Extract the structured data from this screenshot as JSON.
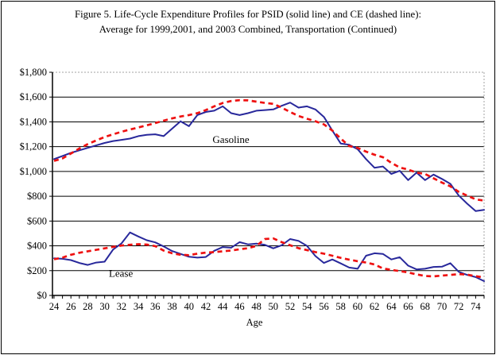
{
  "figure": {
    "title_line1": "Figure 5. Life-Cycle Expenditure Profiles for PSID (solid line) and CE (dashed line):",
    "title_line2": "Average for 1999,2001, and 2003 Combined, Transportation (Continued)"
  },
  "chart_data": {
    "type": "line",
    "title": "Figure 5. Life-Cycle Expenditure Profiles for PSID (solid line) and CE (dashed line): Average for 1999,2001, and 2003 Combined, Transportation (Continued)",
    "xlabel": "Age",
    "ylabel": "",
    "xlim": [
      24,
      75
    ],
    "ylim": [
      0,
      1800
    ],
    "grid": "horizontal",
    "legend_position": "none",
    "x": [
      24,
      25,
      26,
      27,
      28,
      29,
      30,
      31,
      32,
      33,
      34,
      35,
      36,
      37,
      38,
      39,
      40,
      41,
      42,
      43,
      44,
      45,
      46,
      47,
      48,
      49,
      50,
      51,
      52,
      53,
      54,
      55,
      56,
      57,
      58,
      59,
      60,
      61,
      62,
      63,
      64,
      65,
      66,
      67,
      68,
      69,
      70,
      71,
      72,
      73,
      74,
      75
    ],
    "x_tick_labels": [
      24,
      26,
      28,
      30,
      32,
      34,
      36,
      38,
      40,
      42,
      44,
      46,
      48,
      50,
      52,
      54,
      56,
      58,
      60,
      62,
      64,
      66,
      68,
      70,
      72,
      74
    ],
    "y_ticks": [
      0,
      200,
      400,
      600,
      800,
      1000,
      1200,
      1400,
      1600,
      1800
    ],
    "y_tick_labels": [
      "$0",
      "$200",
      "$400",
      "$600",
      "$800",
      "$1,000",
      "$1,200",
      "$1,400",
      "$1,600",
      "$1,800"
    ],
    "annotations": [
      {
        "text": "Gasoline",
        "age": 42.8,
        "value": 1230
      },
      {
        "text": "Lease",
        "age": 30.5,
        "value": 150
      }
    ],
    "colors": {
      "psid_solid": "#28289b",
      "ce_dashed": "#ee1111"
    },
    "series": [
      {
        "id": "gasoline-psid",
        "name": "Gasoline PSID (solid)",
        "group": "Gasoline",
        "style": "solid",
        "color": "#28289b",
        "values": [
          1100,
          1125,
          1150,
          1170,
          1190,
          1210,
          1230,
          1245,
          1255,
          1265,
          1285,
          1295,
          1300,
          1285,
          1345,
          1405,
          1365,
          1455,
          1480,
          1490,
          1525,
          1470,
          1455,
          1470,
          1490,
          1495,
          1500,
          1530,
          1555,
          1515,
          1525,
          1500,
          1440,
          1330,
          1225,
          1215,
          1180,
          1100,
          1030,
          1040,
          980,
          1005,
          930,
          990,
          930,
          975,
          940,
          900,
          805,
          740,
          680,
          690
        ]
      },
      {
        "id": "gasoline-ce",
        "name": "Gasoline CE (dashed)",
        "group": "Gasoline",
        "style": "dashed",
        "color": "#ee1111",
        "values": [
          1085,
          1105,
          1145,
          1185,
          1220,
          1250,
          1278,
          1300,
          1320,
          1338,
          1355,
          1372,
          1390,
          1410,
          1428,
          1443,
          1455,
          1470,
          1495,
          1525,
          1552,
          1568,
          1575,
          1573,
          1563,
          1553,
          1545,
          1515,
          1480,
          1448,
          1425,
          1405,
          1380,
          1330,
          1265,
          1205,
          1190,
          1160,
          1135,
          1115,
          1070,
          1032,
          1015,
          990,
          980,
          945,
          910,
          880,
          835,
          805,
          775,
          765
        ]
      },
      {
        "id": "lease-psid",
        "name": "Lease PSID (solid)",
        "group": "Lease",
        "style": "solid",
        "color": "#28289b",
        "values": [
          300,
          295,
          285,
          262,
          246,
          265,
          272,
          370,
          420,
          508,
          475,
          445,
          428,
          395,
          358,
          335,
          312,
          305,
          310,
          360,
          390,
          385,
          430,
          412,
          418,
          408,
          380,
          405,
          455,
          440,
          400,
          318,
          262,
          290,
          258,
          225,
          215,
          320,
          340,
          335,
          290,
          308,
          240,
          210,
          215,
          230,
          232,
          260,
          190,
          165,
          148,
          115
        ]
      },
      {
        "id": "lease-ce",
        "name": "Lease CE (dashed)",
        "group": "Lease",
        "style": "dashed",
        "color": "#ee1111",
        "values": [
          292,
          305,
          328,
          344,
          356,
          368,
          380,
          392,
          402,
          409,
          413,
          410,
          398,
          362,
          340,
          328,
          325,
          337,
          345,
          349,
          356,
          362,
          372,
          381,
          400,
          455,
          460,
          430,
          405,
          381,
          366,
          350,
          337,
          320,
          303,
          289,
          276,
          265,
          250,
          218,
          206,
          196,
          186,
          170,
          157,
          154,
          160,
          165,
          172,
          168,
          155,
          145
        ]
      }
    ]
  }
}
